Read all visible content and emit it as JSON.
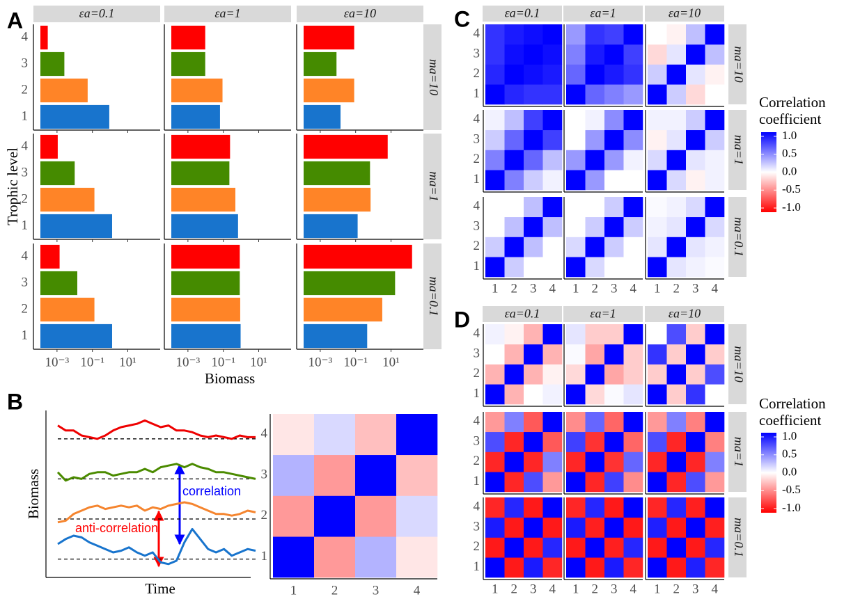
{
  "chart_data": [
    {
      "type": "bar",
      "panel": "A",
      "orientation": "horizontal",
      "x_label": "Biomass",
      "y_label": "Trophic level",
      "log_x": true,
      "xlim": [
        0.000115,
        676
      ],
      "xticks": [
        {
          "value": 0.001,
          "label": "10⁻³"
        },
        {
          "value": 0.1,
          "label": "10⁻¹"
        },
        {
          "value": 10,
          "label": "10¹"
        }
      ],
      "categories": [
        "1",
        "2",
        "3",
        "4"
      ],
      "colors": [
        "#1874cd",
        "#ff8427",
        "#458b00",
        "#ff0000"
      ],
      "col_facets": [
        "εa=0.1",
        "εa=1",
        "εa=10"
      ],
      "row_facets": [
        "ma=10",
        "ma=1",
        "ma=0.1"
      ],
      "values": [
        [
          [
            0.9,
            0.054,
            0.0026,
            0.0003
          ],
          [
            0.065,
            0.09,
            0.0095,
            0.0095
          ],
          [
            0.014,
            0.083,
            0.0083,
            0.083
          ]
        ],
        [
          [
            1.3,
            0.13,
            0.01,
            0.0011
          ],
          [
            0.68,
            0.48,
            0.22,
            0.24
          ],
          [
            0.13,
            0.7,
            0.65,
            6.5
          ]
        ],
        [
          [
            1.3,
            0.13,
            0.014,
            0.0014
          ],
          [
            0.95,
            0.9,
            0.85,
            0.85
          ],
          [
            0.45,
            3.2,
            17,
            155
          ]
        ]
      ]
    },
    {
      "type": "line",
      "panel": "B",
      "x_label": "Time",
      "y_label": "Biomass",
      "ylim": [
        0,
        100
      ],
      "series": [
        {
          "color": "#1874cd",
          "baseline": 11,
          "values": [
            20,
            23,
            25,
            24,
            21,
            19,
            17,
            15,
            16,
            18,
            15,
            13,
            15,
            9,
            8,
            10,
            21,
            29,
            23,
            17,
            15,
            17,
            13,
            15,
            17,
            16
          ]
        },
        {
          "color": "#f5852f",
          "baseline": 35,
          "values": [
            33,
            34,
            38,
            40,
            42,
            43,
            41,
            42,
            43,
            42,
            43,
            40,
            42,
            41,
            43,
            44,
            45,
            44,
            42,
            40,
            38,
            38,
            37,
            38,
            40,
            39
          ]
        },
        {
          "color": "#4b8b00",
          "baseline": 59,
          "values": [
            63,
            58,
            60,
            59,
            62,
            63,
            63,
            61,
            62,
            63,
            63,
            65,
            63,
            66,
            67,
            68,
            66,
            68,
            66,
            65,
            63,
            63,
            62,
            61,
            60,
            59
          ]
        },
        {
          "color": "#ee0000",
          "baseline": 83,
          "values": [
            91,
            88,
            88,
            85,
            84,
            83,
            85,
            88,
            90,
            91,
            92,
            94,
            92,
            90,
            91,
            88,
            88,
            87,
            85,
            84,
            85,
            84,
            83,
            85,
            84,
            84
          ]
        }
      ],
      "annotations": [
        {
          "text": "correlation",
          "color": "#0000ff"
        },
        {
          "text": "anti-correlation",
          "color": "#ff0000"
        }
      ]
    },
    {
      "type": "heatmap",
      "x_categories": [
        "1",
        "2",
        "3",
        "4"
      ],
      "y_categories": [
        "1",
        "2",
        "3",
        "4"
      ],
      "zlim": [
        -1,
        1
      ],
      "colorscale": [
        "#ff0000",
        "#ffffff",
        "#0000ff"
      ],
      "z": [
        [
          1,
          -0.4,
          0.3,
          -0.1
        ],
        [
          -0.4,
          1,
          -0.4,
          0.15
        ],
        [
          0.3,
          -0.4,
          1,
          -0.25
        ],
        [
          -0.1,
          0.15,
          -0.25,
          1
        ]
      ]
    },
    {
      "type": "heatmap_facets",
      "panel": "C",
      "col_facets": [
        "εa=0.1",
        "εa=1",
        "εa=10"
      ],
      "row_facets": [
        "ma=10",
        "ma=1",
        "ma=0.1"
      ],
      "x_categories": [
        "1",
        "2",
        "3",
        "4"
      ],
      "y_categories": [
        "1",
        "2",
        "3",
        "4"
      ],
      "zlim": [
        -1,
        1
      ],
      "colorscale": [
        "#ff0000",
        "#ffffff",
        "#0000ff"
      ],
      "legend_title": "Correlation coefficient",
      "legend_ticks": [
        {
          "value": 1,
          "label": "1.0"
        },
        0.5,
        {
          "value": 0,
          "label": "0.0"
        },
        -0.5,
        {
          "value": -1,
          "label": "-1.0"
        }
      ],
      "z": [
        [
          [
            [
              1,
              0.85,
              0.8,
              0.8
            ],
            [
              0.85,
              1,
              0.95,
              0.9
            ],
            [
              0.8,
              0.95,
              1,
              0.95
            ],
            [
              0.8,
              0.9,
              0.95,
              1
            ]
          ],
          [
            [
              1,
              0.6,
              0.5,
              0.4
            ],
            [
              0.6,
              1,
              0.9,
              0.8
            ],
            [
              0.5,
              0.9,
              1,
              0.75
            ],
            [
              0.4,
              0.8,
              0.75,
              1
            ]
          ],
          [
            [
              1,
              0.2,
              -0.15,
              0
            ],
            [
              0.2,
              1,
              0.1,
              -0.05
            ],
            [
              -0.15,
              0.1,
              1,
              0.25
            ],
            [
              0,
              -0.05,
              0.25,
              1
            ]
          ]
        ],
        [
          [
            [
              1,
              0.5,
              0.2,
              0.05
            ],
            [
              0.5,
              1,
              0.6,
              0.25
            ],
            [
              0.2,
              0.6,
              1,
              0.75
            ],
            [
              0.05,
              0.25,
              0.75,
              1
            ]
          ],
          [
            [
              1,
              0.4,
              0,
              0
            ],
            [
              0.4,
              1,
              0.4,
              0.05
            ],
            [
              0,
              0.4,
              1,
              0.45
            ],
            [
              0,
              0.05,
              0.45,
              1
            ]
          ],
          [
            [
              1,
              0.15,
              -0.05,
              0.05
            ],
            [
              0.15,
              1,
              0.1,
              0.05
            ],
            [
              -0.05,
              0.1,
              1,
              0.2
            ],
            [
              0.05,
              0.05,
              0.2,
              1
            ]
          ]
        ],
        [
          [
            [
              1,
              0.2,
              0,
              0
            ],
            [
              0.2,
              1,
              0.25,
              0
            ],
            [
              0,
              0.25,
              1,
              0.25
            ],
            [
              0,
              0,
              0.25,
              1
            ]
          ],
          [
            [
              1,
              0.15,
              0,
              0
            ],
            [
              0.15,
              1,
              0.2,
              0
            ],
            [
              0,
              0.2,
              1,
              0.2
            ],
            [
              0,
              0,
              0.2,
              1
            ]
          ],
          [
            [
              1,
              0.1,
              0.05,
              0.02
            ],
            [
              0.1,
              1,
              0.1,
              0.05
            ],
            [
              0.05,
              0.1,
              1,
              0.15
            ],
            [
              0.02,
              0.05,
              0.15,
              1
            ]
          ]
        ]
      ]
    },
    {
      "type": "heatmap_facets",
      "panel": "D",
      "col_facets": [
        "εa=0.1",
        "εa=1",
        "εa=10"
      ],
      "row_facets": [
        "ma=10",
        "ma=1",
        "ma=0.1"
      ],
      "x_categories": [
        "1",
        "2",
        "3",
        "4"
      ],
      "y_categories": [
        "1",
        "2",
        "3",
        "4"
      ],
      "zlim": [
        -1,
        1
      ],
      "colorscale": [
        "#ff0000",
        "#ffffff",
        "#0000ff"
      ],
      "legend_title": "Correlation coefficient",
      "legend_ticks": [
        {
          "value": 1,
          "label": "1.0"
        },
        0.5,
        {
          "value": 0,
          "label": "0.0"
        },
        -0.5,
        {
          "value": -1,
          "label": "-1.0"
        }
      ],
      "z": [
        [
          [
            [
              1,
              -0.3,
              0,
              0.05
            ],
            [
              -0.3,
              1,
              -0.3,
              -0.05
            ],
            [
              0,
              -0.3,
              1,
              -0.3
            ],
            [
              0.05,
              -0.05,
              -0.3,
              1
            ]
          ],
          [
            [
              1,
              -0.15,
              0.02,
              0.1
            ],
            [
              -0.15,
              1,
              -0.35,
              -0.2
            ],
            [
              0.02,
              -0.35,
              1,
              -0.2
            ],
            [
              0.1,
              -0.2,
              -0.2,
              1
            ]
          ],
          [
            [
              1,
              -0.2,
              0.8,
              0
            ],
            [
              -0.2,
              1,
              -0.2,
              0.7
            ],
            [
              0.8,
              -0.2,
              1,
              -0.2
            ],
            [
              0,
              0.7,
              -0.2,
              1
            ]
          ]
        ],
        [
          [
            [
              1,
              -0.85,
              0.7,
              -0.4
            ],
            [
              -0.85,
              1,
              -0.85,
              0.5
            ],
            [
              0.7,
              -0.85,
              1,
              -0.65
            ],
            [
              -0.4,
              0.5,
              -0.65,
              1
            ]
          ],
          [
            [
              1,
              -0.85,
              0.75,
              -0.45
            ],
            [
              -0.85,
              1,
              -0.8,
              0.6
            ],
            [
              0.75,
              -0.8,
              1,
              -0.6
            ],
            [
              -0.45,
              0.6,
              -0.6,
              1
            ]
          ],
          [
            [
              1,
              -0.85,
              0.7,
              -0.4
            ],
            [
              -0.85,
              1,
              -0.85,
              0.5
            ],
            [
              0.7,
              -0.85,
              1,
              -0.5
            ],
            [
              -0.4,
              0.5,
              -0.5,
              1
            ]
          ]
        ],
        [
          [
            [
              1,
              -0.9,
              0.9,
              -0.85
            ],
            [
              -0.9,
              1,
              -0.9,
              0.85
            ],
            [
              0.9,
              -0.9,
              1,
              -0.9
            ],
            [
              -0.85,
              0.85,
              -0.9,
              1
            ]
          ],
          [
            [
              1,
              -0.9,
              0.9,
              -0.85
            ],
            [
              -0.9,
              1,
              -0.88,
              0.85
            ],
            [
              0.9,
              -0.88,
              1,
              -0.9
            ],
            [
              -0.85,
              0.85,
              -0.9,
              1
            ]
          ],
          [
            [
              1,
              -0.9,
              0.88,
              -0.85
            ],
            [
              -0.9,
              1,
              -0.9,
              0.85
            ],
            [
              0.88,
              -0.9,
              1,
              -0.88
            ],
            [
              -0.85,
              0.85,
              -0.88,
              1
            ]
          ]
        ]
      ]
    }
  ]
}
